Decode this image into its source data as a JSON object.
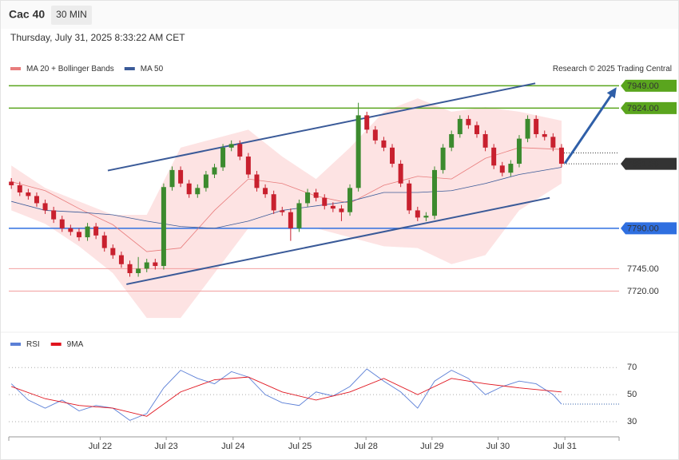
{
  "header": {
    "symbol": "Cac 40",
    "interval": "30 MIN",
    "timestamp": "Thursday, July 31, 2025 8:33:22 AM CET"
  },
  "chart_data": [
    {
      "type": "candlestick",
      "source": "Research © 2025 Trading Central",
      "xlim": [
        0.7,
        72.8
      ],
      "ylim": [
        7675,
        7960
      ],
      "up_color": "#3c8a2e",
      "down_color": "#c8202e",
      "x": [
        1,
        2,
        3,
        4,
        5,
        6,
        7,
        8,
        9,
        10,
        11,
        12,
        13,
        14,
        15,
        16,
        17,
        18,
        19,
        20,
        21,
        22,
        23,
        24,
        25,
        26,
        27,
        28,
        29,
        30,
        31,
        32,
        33,
        34,
        35,
        36,
        37,
        38,
        39,
        40,
        41,
        42,
        43,
        44,
        45,
        46,
        47,
        48,
        49,
        50,
        51,
        52,
        53,
        54,
        55,
        56,
        57,
        58,
        59,
        60,
        61,
        62,
        63,
        64,
        65,
        66
      ],
      "ohlc": [
        [
          7842,
          7846,
          7834,
          7838
        ],
        [
          7838,
          7842,
          7826,
          7830
        ],
        [
          7830,
          7834,
          7822,
          7826
        ],
        [
          7826,
          7830,
          7814,
          7818
        ],
        [
          7818,
          7822,
          7806,
          7810
        ],
        [
          7810,
          7814,
          7796,
          7800
        ],
        [
          7800,
          7804,
          7786,
          7790
        ],
        [
          7790,
          7794,
          7782,
          7786
        ],
        [
          7786,
          7790,
          7776,
          7780
        ],
        [
          7780,
          7796,
          7776,
          7792
        ],
        [
          7792,
          7796,
          7778,
          7782
        ],
        [
          7782,
          7786,
          7764,
          7768
        ],
        [
          7768,
          7772,
          7756,
          7760
        ],
        [
          7760,
          7764,
          7746,
          7750
        ],
        [
          7750,
          7754,
          7736,
          7740
        ],
        [
          7740,
          7758,
          7736,
          7745
        ],
        [
          7745,
          7756,
          7741,
          7752
        ],
        [
          7752,
          7756,
          7744,
          7748
        ],
        [
          7748,
          7840,
          7744,
          7836
        ],
        [
          7836,
          7859,
          7832,
          7855
        ],
        [
          7855,
          7859,
          7836,
          7840
        ],
        [
          7840,
          7844,
          7824,
          7828
        ],
        [
          7828,
          7839,
          7824,
          7835
        ],
        [
          7835,
          7854,
          7831,
          7850
        ],
        [
          7850,
          7862,
          7846,
          7858
        ],
        [
          7858,
          7884,
          7854,
          7880
        ],
        [
          7880,
          7888,
          7876,
          7884
        ],
        [
          7884,
          7888,
          7866,
          7870
        ],
        [
          7870,
          7874,
          7846,
          7850
        ],
        [
          7850,
          7854,
          7831,
          7835
        ],
        [
          7835,
          7839,
          7824,
          7828
        ],
        [
          7828,
          7832,
          7806,
          7810
        ],
        [
          7810,
          7814,
          7804,
          7808
        ],
        [
          7808,
          7812,
          7776,
          7790
        ],
        [
          7790,
          7822,
          7786,
          7818
        ],
        [
          7818,
          7834,
          7814,
          7830
        ],
        [
          7830,
          7834,
          7820,
          7824
        ],
        [
          7824,
          7828,
          7811,
          7815
        ],
        [
          7815,
          7819,
          7808,
          7812
        ],
        [
          7812,
          7816,
          7798,
          7808
        ],
        [
          7808,
          7839,
          7804,
          7835
        ],
        [
          7835,
          7930,
          7831,
          7916
        ],
        [
          7916,
          7920,
          7896,
          7900
        ],
        [
          7900,
          7904,
          7884,
          7888
        ],
        [
          7888,
          7892,
          7876,
          7880
        ],
        [
          7880,
          7884,
          7858,
          7862
        ],
        [
          7862,
          7866,
          7836,
          7840
        ],
        [
          7840,
          7844,
          7806,
          7810
        ],
        [
          7810,
          7814,
          7798,
          7802
        ],
        [
          7802,
          7808,
          7798,
          7804
        ],
        [
          7804,
          7859,
          7800,
          7855
        ],
        [
          7855,
          7884,
          7851,
          7880
        ],
        [
          7880,
          7899,
          7876,
          7895
        ],
        [
          7895,
          7916,
          7891,
          7912
        ],
        [
          7912,
          7916,
          7901,
          7905
        ],
        [
          7905,
          7909,
          7891,
          7895
        ],
        [
          7895,
          7899,
          7876,
          7880
        ],
        [
          7880,
          7884,
          7856,
          7860
        ],
        [
          7860,
          7864,
          7848,
          7852
        ],
        [
          7852,
          7866,
          7848,
          7862
        ],
        [
          7862,
          7894,
          7858,
          7890
        ],
        [
          7890,
          7916,
          7886,
          7912
        ],
        [
          7912,
          7916,
          7891,
          7895
        ],
        [
          7895,
          7899,
          7888,
          7892
        ],
        [
          7892,
          7896,
          7876,
          7880
        ],
        [
          7880,
          7884,
          7858,
          7862
        ]
      ],
      "series": [
        {
          "name": "MA 20 + Bollinger Bands",
          "color": "#e87c7c",
          "band_color": "#fde3e3",
          "x": [
            1,
            5,
            9,
            13,
            17,
            21,
            25,
            29,
            33,
            37,
            41,
            45,
            49,
            53,
            57,
            61,
            66
          ],
          "values": [
            7842,
            7832,
            7812,
            7794,
            7764,
            7768,
            7810,
            7845,
            7840,
            7826,
            7818,
            7838,
            7848,
            7845,
            7868,
            7880,
            7878
          ],
          "upper": [
            7860,
            7835,
            7820,
            7805,
            7805,
            7880,
            7890,
            7900,
            7870,
            7845,
            7880,
            7920,
            7935,
            7920,
            7925,
            7920,
            7910
          ],
          "lower": [
            7810,
            7795,
            7770,
            7740,
            7690,
            7690,
            7740,
            7790,
            7790,
            7790,
            7780,
            7770,
            7768,
            7750,
            7760,
            7810,
            7840
          ]
        },
        {
          "name": "MA 50",
          "color": "#3a5a98",
          "x": [
            1,
            5,
            9,
            13,
            17,
            21,
            25,
            29,
            33,
            37,
            41,
            45,
            49,
            53,
            57,
            61,
            66
          ],
          "values": [
            7820,
            7810,
            7808,
            7805,
            7798,
            7792,
            7790,
            7798,
            7810,
            7815,
            7820,
            7830,
            7830,
            7832,
            7840,
            7850,
            7858
          ]
        }
      ],
      "trendlines": [
        {
          "color": "#3a5a98",
          "x": [
            12.4,
            62.9
          ],
          "values": [
            7854.4,
            7951.7
          ]
        },
        {
          "color": "#3a5a98",
          "x": [
            14.6,
            64.6
          ],
          "values": [
            7727.6,
            7824
          ]
        }
      ],
      "arrow": {
        "color": "#2f5fa8",
        "x": [
          66.4,
          72.5
        ],
        "values": [
          7862.4,
          7947.3
        ]
      },
      "levels": [
        {
          "value": 7949,
          "label": "7949.00",
          "color": "#5aa51e",
          "style": "box",
          "line": "solid"
        },
        {
          "value": 7924,
          "label": "7924.00",
          "color": "#5aa51e",
          "style": "box",
          "line": "solid"
        },
        {
          "value": 7861.96,
          "color": "#333333",
          "style": "box",
          "line": "dotted"
        },
        {
          "value": 7790,
          "label": "7790.00",
          "color": "#2f6fe0",
          "style": "box",
          "line": "solid"
        },
        {
          "value": 7745,
          "label": "7745.00",
          "color": "#e03030",
          "style": "text",
          "line": "solid"
        },
        {
          "value": 7720,
          "label": "7720.00",
          "color": "#e03030",
          "style": "text",
          "line": "solid"
        }
      ],
      "reference_lines": [
        7874
      ]
    },
    {
      "type": "line",
      "ylim": [
        20,
        79
      ],
      "yticks": [
        70,
        50,
        30
      ],
      "grid": true,
      "xlim": [
        0.7,
        72.8
      ],
      "xticks": [
        {
          "value": 11.5,
          "label": "Jul 22"
        },
        {
          "value": 19.3,
          "label": "Jul 23"
        },
        {
          "value": 27.2,
          "label": "Jul 24"
        },
        {
          "value": 35.1,
          "label": "Jul 25"
        },
        {
          "value": 42.9,
          "label": "Jul 28"
        },
        {
          "value": 50.7,
          "label": "Jul 29"
        },
        {
          "value": 58.5,
          "label": "Jul 30"
        },
        {
          "value": 66.4,
          "label": "Jul 31"
        }
      ],
      "series": [
        {
          "name": "RSI",
          "color": "#5b7fd6",
          "x": [
            1,
            3,
            5,
            7,
            9,
            11,
            13,
            15,
            17,
            19,
            21,
            23,
            25,
            27,
            29,
            31,
            33,
            35,
            37,
            39,
            41,
            43,
            45,
            47,
            49,
            51,
            53,
            55,
            57,
            59,
            61,
            63,
            65,
            66
          ],
          "values": [
            58,
            46,
            40,
            46,
            38,
            42,
            40,
            31,
            36,
            55,
            68,
            62,
            58,
            67,
            63,
            50,
            44,
            42,
            52,
            49,
            56,
            69,
            60,
            52,
            40,
            60,
            68,
            62,
            50,
            56,
            60,
            58,
            50,
            43
          ]
        },
        {
          "name": "9MA",
          "color": "#e0141e",
          "x": [
            1,
            5,
            9,
            13,
            17,
            21,
            25,
            29,
            33,
            37,
            41,
            45,
            49,
            53,
            57,
            61,
            66
          ],
          "values": [
            56,
            47,
            42,
            40,
            34,
            52,
            61,
            63,
            52,
            46,
            52,
            62,
            50,
            62,
            58,
            55,
            52
          ]
        }
      ]
    }
  ]
}
